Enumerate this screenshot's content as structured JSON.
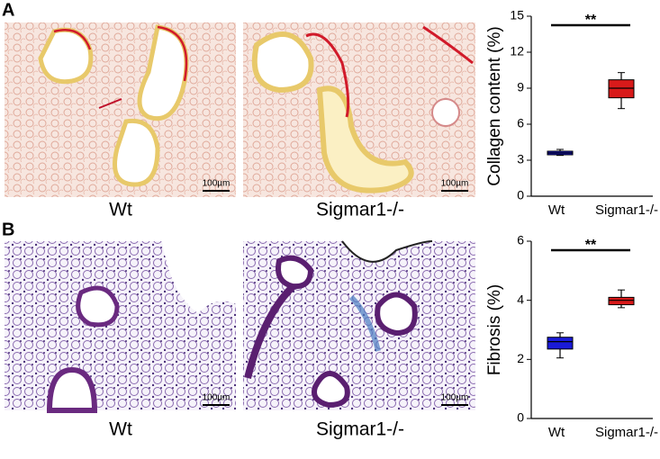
{
  "panels": [
    {
      "label": "A",
      "images": [
        {
          "caption": "Wt",
          "scale_bar": "100µm"
        },
        {
          "caption": "Sigmar1-/-",
          "scale_bar": "100µm"
        }
      ]
    },
    {
      "label": "B",
      "images": [
        {
          "caption": "Wt",
          "scale_bar": "100µm"
        },
        {
          "caption": "Sigmar1-/-",
          "scale_bar": "100µm"
        }
      ]
    }
  ],
  "chart_data": [
    {
      "type": "box",
      "ylabel": "Collagen content (%)",
      "annotation": "**",
      "categories": [
        "Wt",
        "Sigmar1-/-"
      ],
      "colors": [
        "#1a1ad8",
        "#d81a1a"
      ],
      "min": [
        3.4,
        7.3
      ],
      "q1": [
        3.45,
        8.2
      ],
      "median": [
        3.6,
        9.0
      ],
      "q3": [
        3.75,
        9.7
      ],
      "max": [
        3.9,
        10.3
      ],
      "ylim": [
        0,
        15
      ],
      "yticks": [
        0,
        3,
        6,
        9,
        12,
        15
      ]
    },
    {
      "type": "box",
      "ylabel": "Fibrosis (%)",
      "annotation": "**",
      "categories": [
        "Wt",
        "Sigmar1-/-"
      ],
      "colors": [
        "#1a1ad8",
        "#d81a1a"
      ],
      "min": [
        2.05,
        3.75
      ],
      "q1": [
        2.35,
        3.85
      ],
      "median": [
        2.6,
        4.0
      ],
      "q3": [
        2.75,
        4.1
      ],
      "max": [
        2.9,
        4.35
      ],
      "ylim": [
        0,
        6
      ],
      "yticks": [
        0,
        2,
        4,
        6
      ]
    }
  ]
}
